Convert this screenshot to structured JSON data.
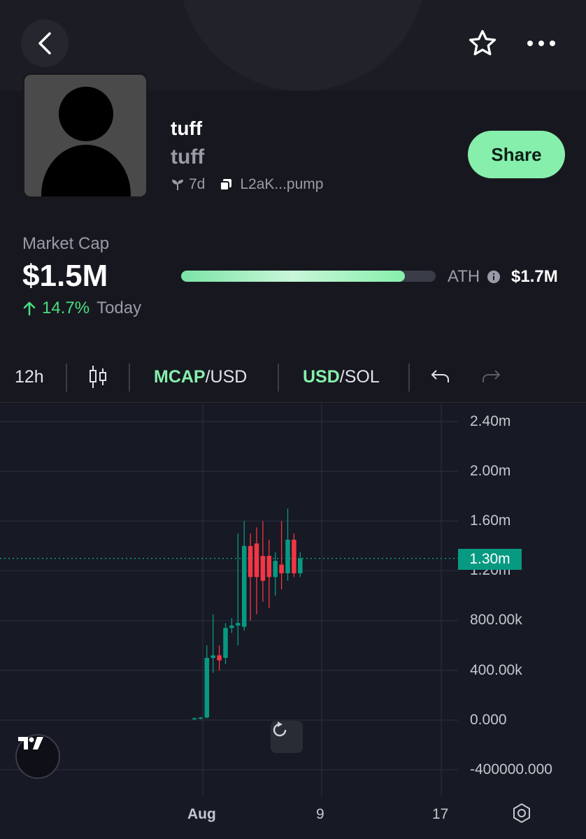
{
  "header": {
    "back_icon": "chevron-left-icon",
    "favorite_icon": "star-icon",
    "more_icon": "more-horizontal-icon"
  },
  "token": {
    "name": "tuff",
    "ticker": "tuff",
    "age": "7d",
    "address": "L2aK...pump",
    "share_label": "Share"
  },
  "market": {
    "label": "Market Cap",
    "value": "$1.5M",
    "change_pct": "14.7%",
    "change_period": "Today",
    "ath_label": "ATH",
    "ath_value": "$1.7M",
    "progress_fraction": 0.88
  },
  "toolbar": {
    "interval": "12h",
    "mcap_prefix": "MCAP",
    "mcap_suffix": "/USD",
    "usd_prefix": "USD",
    "usd_suffix": "/SOL"
  },
  "colors": {
    "accent": "#86efac",
    "up": "#089981",
    "down": "#f23645",
    "positive_text": "#4ade80"
  },
  "chart_data": {
    "type": "candlestick",
    "y_ticks": [
      "2.40m",
      "2.00m",
      "1.60m",
      "1.20m",
      "800.00k",
      "400.00k",
      "0.000",
      "-400000.000"
    ],
    "x_ticks": [
      "Aug",
      "9",
      "17"
    ],
    "current_price_label": "1.30m",
    "current_price": 1300000,
    "ylim": [
      -400000,
      2400000
    ],
    "candles": [
      {
        "o": 10000,
        "h": 20000,
        "l": 0,
        "c": 15000
      },
      {
        "o": 15000,
        "h": 25000,
        "l": 5000,
        "c": 20000
      },
      {
        "o": 20000,
        "h": 600000,
        "l": 15000,
        "c": 500000
      },
      {
        "o": 500000,
        "h": 850000,
        "l": 380000,
        "c": 520000
      },
      {
        "o": 520000,
        "h": 600000,
        "l": 400000,
        "c": 480000
      },
      {
        "o": 500000,
        "h": 780000,
        "l": 450000,
        "c": 740000
      },
      {
        "o": 740000,
        "h": 820000,
        "l": 700000,
        "c": 760000
      },
      {
        "o": 760000,
        "h": 1500000,
        "l": 600000,
        "c": 780000
      },
      {
        "o": 750000,
        "h": 1600000,
        "l": 720000,
        "c": 1400000
      },
      {
        "o": 1400000,
        "h": 1500000,
        "l": 800000,
        "c": 1150000
      },
      {
        "o": 1420000,
        "h": 1550000,
        "l": 850000,
        "c": 1150000
      },
      {
        "o": 1320000,
        "h": 1600000,
        "l": 950000,
        "c": 1120000
      },
      {
        "o": 1320000,
        "h": 1450000,
        "l": 900000,
        "c": 1150000
      },
      {
        "o": 1150000,
        "h": 1350000,
        "l": 1000000,
        "c": 1280000
      },
      {
        "o": 1250000,
        "h": 1600000,
        "l": 1050000,
        "c": 1180000
      },
      {
        "o": 1180000,
        "h": 1700000,
        "l": 1120000,
        "c": 1450000
      },
      {
        "o": 1450000,
        "h": 1500000,
        "l": 1150000,
        "c": 1180000
      },
      {
        "o": 1180000,
        "h": 1350000,
        "l": 1150000,
        "c": 1300000
      }
    ]
  }
}
